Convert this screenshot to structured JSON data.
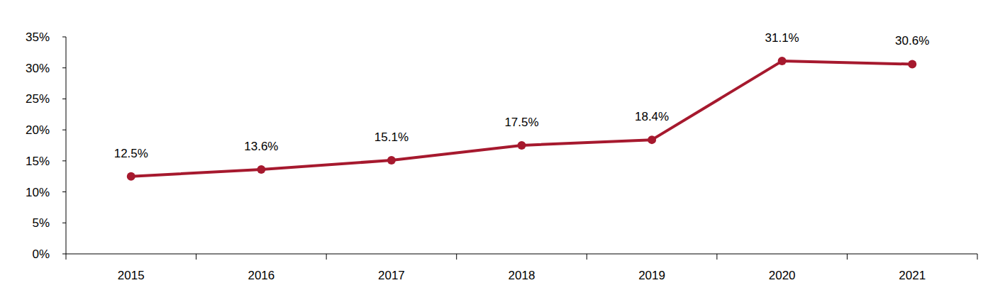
{
  "chart_data": {
    "type": "line",
    "categories": [
      "2015",
      "2016",
      "2017",
      "2018",
      "2019",
      "2020",
      "2021"
    ],
    "values": [
      12.5,
      13.6,
      15.1,
      17.5,
      18.4,
      31.1,
      30.6
    ],
    "value_labels": [
      "12.5%",
      "13.6%",
      "15.1%",
      "17.5%",
      "18.4%",
      "31.1%",
      "30.6%"
    ],
    "color": "#a6192e",
    "marker": "circle",
    "line_style": "solid",
    "data_labels": true,
    "grid": false,
    "ylim": [
      0,
      35
    ],
    "yticks": [
      {
        "value": 0,
        "label": "0%"
      },
      {
        "value": 5,
        "label": "5%"
      },
      {
        "value": 10,
        "label": "10%"
      },
      {
        "value": 15,
        "label": "15%"
      },
      {
        "value": 20,
        "label": "20%"
      },
      {
        "value": 25,
        "label": "25%"
      },
      {
        "value": 30,
        "label": "30%"
      },
      {
        "value": 35,
        "label": "35%"
      }
    ]
  }
}
